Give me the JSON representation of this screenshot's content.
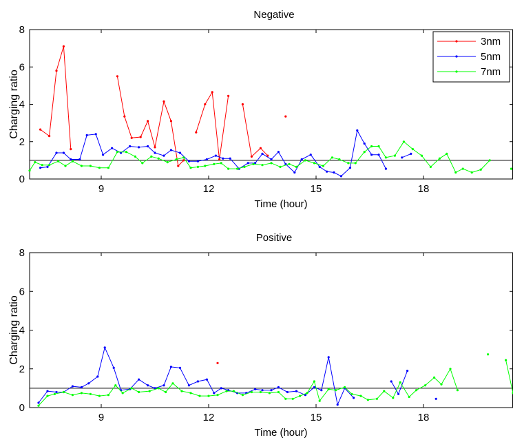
{
  "chart_data": [
    {
      "type": "line",
      "title": "Negative",
      "xlabel": "Time (hour)",
      "ylabel": "Charging ratio",
      "xlim": [
        7,
        20.5
      ],
      "ylim": [
        0,
        8
      ],
      "xticks": [
        9,
        12,
        15,
        18
      ],
      "xtick_labels": [
        "9",
        "12",
        "15",
        "18"
      ],
      "yticks": [
        0,
        2,
        4,
        6,
        8
      ],
      "ytick_labels": [
        "0",
        "2",
        "4",
        "6",
        "8"
      ],
      "reference_line": 1,
      "legend": {
        "position": "top-right",
        "entries": [
          "3nm",
          "5nm",
          "7nm"
        ]
      },
      "series": [
        {
          "name": "3nm",
          "color": "#ff0000",
          "points": [
            [
              7.3,
              2.65
            ],
            [
              7.55,
              2.3
            ],
            [
              7.75,
              5.8
            ],
            [
              7.95,
              7.1
            ],
            [
              8.15,
              1.6
            ],
            null,
            [
              9.45,
              5.5
            ],
            [
              9.65,
              3.35
            ],
            [
              9.85,
              2.2
            ],
            [
              10.1,
              2.25
            ],
            [
              10.3,
              3.1
            ],
            [
              10.5,
              1.7
            ],
            [
              10.75,
              4.15
            ],
            [
              10.95,
              3.1
            ],
            [
              11.15,
              0.7
            ],
            [
              11.3,
              1.0
            ],
            null,
            [
              11.65,
              2.5
            ],
            [
              11.9,
              4.0
            ],
            [
              12.1,
              4.65
            ],
            [
              12.3,
              1.05
            ],
            [
              12.55,
              4.45
            ],
            null,
            [
              12.95,
              4.0
            ],
            [
              13.2,
              1.2
            ],
            [
              13.45,
              1.65
            ],
            [
              13.65,
              1.25
            ],
            null,
            [
              14.15,
              3.35
            ]
          ]
        },
        {
          "name": "5nm",
          "color": "#0000ff",
          "points": [
            [
              7.3,
              0.6
            ],
            [
              7.5,
              0.65
            ],
            [
              7.75,
              1.4
            ],
            [
              7.95,
              1.4
            ],
            [
              8.15,
              1.05
            ],
            [
              8.4,
              1.05
            ],
            [
              8.6,
              2.35
            ],
            [
              8.85,
              2.4
            ],
            [
              9.05,
              1.3
            ],
            [
              9.3,
              1.65
            ],
            [
              9.55,
              1.4
            ],
            [
              9.8,
              1.75
            ],
            [
              10.05,
              1.7
            ],
            [
              10.3,
              1.75
            ],
            [
              10.5,
              1.4
            ],
            [
              10.75,
              1.25
            ],
            [
              10.95,
              1.55
            ],
            [
              11.2,
              1.4
            ],
            [
              11.45,
              0.95
            ],
            [
              11.7,
              0.95
            ],
            [
              11.95,
              1.05
            ],
            [
              12.2,
              1.25
            ],
            [
              12.4,
              1.1
            ],
            [
              12.6,
              1.1
            ],
            [
              12.85,
              0.55
            ],
            [
              13.1,
              0.85
            ],
            [
              13.3,
              0.85
            ],
            [
              13.5,
              1.35
            ],
            [
              13.75,
              1.05
            ],
            [
              13.95,
              1.45
            ],
            [
              14.15,
              0.8
            ],
            [
              14.4,
              0.35
            ],
            [
              14.6,
              1.05
            ],
            [
              14.85,
              1.3
            ],
            [
              15.1,
              0.65
            ],
            [
              15.3,
              0.4
            ],
            [
              15.5,
              0.35
            ],
            [
              15.7,
              0.15
            ],
            [
              15.95,
              0.6
            ],
            [
              16.15,
              2.6
            ],
            [
              16.35,
              1.9
            ],
            [
              16.55,
              1.3
            ],
            [
              16.75,
              1.3
            ],
            [
              16.95,
              0.55
            ],
            null,
            [
              17.4,
              1.15
            ],
            [
              17.65,
              1.35
            ]
          ]
        },
        {
          "name": "7nm",
          "color": "#00ff00",
          "points": [
            [
              7.0,
              0.45
            ],
            [
              7.15,
              0.9
            ],
            [
              7.35,
              0.75
            ],
            [
              7.55,
              0.75
            ],
            [
              7.8,
              0.95
            ],
            [
              8.0,
              0.7
            ],
            [
              8.2,
              0.95
            ],
            [
              8.45,
              0.7
            ],
            [
              8.7,
              0.7
            ],
            [
              8.95,
              0.6
            ],
            [
              9.2,
              0.6
            ],
            [
              9.45,
              1.45
            ],
            [
              9.7,
              1.45
            ],
            [
              9.95,
              1.2
            ],
            [
              10.15,
              0.85
            ],
            [
              10.4,
              1.2
            ],
            [
              10.6,
              1.1
            ],
            [
              10.85,
              0.9
            ],
            [
              11.1,
              1.05
            ],
            [
              11.3,
              1.15
            ],
            [
              11.5,
              0.6
            ],
            [
              11.7,
              0.65
            ],
            [
              11.9,
              0.7
            ],
            [
              12.15,
              0.8
            ],
            [
              12.35,
              0.85
            ],
            [
              12.55,
              0.55
            ],
            [
              12.8,
              0.55
            ],
            [
              13.0,
              0.65
            ],
            [
              13.25,
              0.8
            ],
            [
              13.5,
              0.75
            ],
            [
              13.75,
              0.85
            ],
            [
              14.0,
              0.65
            ],
            [
              14.25,
              0.8
            ],
            [
              14.45,
              0.65
            ],
            [
              14.7,
              1.0
            ],
            [
              14.95,
              0.85
            ],
            [
              15.2,
              0.7
            ],
            [
              15.45,
              1.15
            ],
            [
              15.65,
              1.05
            ],
            [
              15.9,
              0.85
            ],
            [
              16.1,
              0.85
            ],
            [
              16.35,
              1.45
            ],
            [
              16.55,
              1.75
            ],
            [
              16.75,
              1.75
            ],
            [
              16.95,
              1.15
            ],
            [
              17.2,
              1.25
            ],
            [
              17.45,
              2.0
            ],
            [
              17.7,
              1.6
            ],
            [
              17.95,
              1.25
            ],
            [
              18.2,
              0.65
            ],
            [
              18.45,
              1.1
            ],
            [
              18.65,
              1.35
            ],
            [
              18.9,
              0.35
            ],
            [
              19.1,
              0.55
            ],
            [
              19.35,
              0.35
            ],
            [
              19.6,
              0.5
            ],
            [
              19.85,
              1.0
            ],
            null,
            [
              20.45,
              0.55
            ]
          ]
        }
      ]
    },
    {
      "type": "line",
      "title": "Positive",
      "xlabel": "Time (hour)",
      "ylabel": "Charging ratio",
      "xlim": [
        7,
        20.5
      ],
      "ylim": [
        0,
        8
      ],
      "xticks": [
        9,
        12,
        15,
        18
      ],
      "xtick_labels": [
        "9",
        "12",
        "15",
        "18"
      ],
      "yticks": [
        0,
        2,
        4,
        6,
        8
      ],
      "ytick_labels": [
        "0",
        "2",
        "4",
        "6",
        "8"
      ],
      "reference_line": 1,
      "series": [
        {
          "name": "3nm",
          "color": "#ff0000",
          "points": [
            [
              12.25,
              2.3
            ]
          ]
        },
        {
          "name": "5nm",
          "color": "#0000ff",
          "points": [
            [
              7.25,
              0.25
            ],
            [
              7.5,
              0.85
            ],
            [
              7.75,
              0.8
            ],
            [
              7.95,
              0.8
            ],
            [
              8.2,
              1.1
            ],
            [
              8.45,
              1.05
            ],
            [
              8.65,
              1.25
            ],
            [
              8.9,
              1.6
            ],
            [
              9.1,
              3.1
            ],
            [
              9.35,
              2.05
            ],
            [
              9.55,
              0.9
            ],
            [
              9.8,
              0.95
            ],
            [
              10.05,
              1.45
            ],
            [
              10.3,
              1.15
            ],
            [
              10.5,
              1.0
            ],
            [
              10.75,
              1.15
            ],
            [
              10.95,
              2.1
            ],
            [
              11.2,
              2.05
            ],
            [
              11.45,
              1.15
            ],
            [
              11.7,
              1.35
            ],
            [
              11.95,
              1.45
            ],
            [
              12.15,
              0.75
            ],
            [
              12.35,
              1.0
            ],
            [
              12.55,
              0.9
            ],
            [
              12.8,
              0.75
            ],
            [
              13.05,
              0.75
            ],
            [
              13.3,
              0.95
            ],
            [
              13.5,
              0.9
            ],
            [
              13.75,
              0.9
            ],
            [
              13.95,
              1.05
            ],
            [
              14.2,
              0.8
            ],
            [
              14.45,
              0.85
            ],
            [
              14.7,
              0.65
            ],
            [
              14.95,
              1.05
            ],
            [
              15.15,
              0.9
            ],
            [
              15.35,
              2.6
            ],
            [
              15.6,
              0.15
            ],
            [
              15.8,
              1.0
            ],
            [
              16.05,
              0.5
            ],
            null,
            [
              17.1,
              1.35
            ],
            [
              17.3,
              0.7
            ],
            [
              17.55,
              1.9
            ],
            null,
            [
              18.35,
              0.45
            ]
          ]
        },
        {
          "name": "7nm",
          "color": "#00ff00",
          "points": [
            [
              7.25,
              0.1
            ],
            [
              7.5,
              0.6
            ],
            [
              7.7,
              0.7
            ],
            [
              7.95,
              0.8
            ],
            [
              8.2,
              0.65
            ],
            [
              8.45,
              0.75
            ],
            [
              8.7,
              0.7
            ],
            [
              8.95,
              0.6
            ],
            [
              9.2,
              0.65
            ],
            [
              9.4,
              1.15
            ],
            [
              9.6,
              0.75
            ],
            [
              9.85,
              1.0
            ],
            [
              10.05,
              0.8
            ],
            [
              10.35,
              0.85
            ],
            [
              10.6,
              1.0
            ],
            [
              10.8,
              0.8
            ],
            [
              11.0,
              1.25
            ],
            [
              11.25,
              0.85
            ],
            [
              11.5,
              0.75
            ],
            [
              11.75,
              0.6
            ],
            [
              12.0,
              0.6
            ],
            [
              12.25,
              0.65
            ],
            [
              12.5,
              0.85
            ],
            [
              12.7,
              0.85
            ],
            [
              12.95,
              0.65
            ],
            [
              13.2,
              0.8
            ],
            [
              13.45,
              0.8
            ],
            [
              13.7,
              0.75
            ],
            [
              13.95,
              0.8
            ],
            [
              14.15,
              0.45
            ],
            [
              14.35,
              0.45
            ],
            [
              14.55,
              0.6
            ],
            [
              14.75,
              0.75
            ],
            [
              14.95,
              1.35
            ],
            [
              15.1,
              0.35
            ],
            [
              15.35,
              0.95
            ],
            [
              15.55,
              0.9
            ],
            [
              15.8,
              1.05
            ],
            [
              16.0,
              0.7
            ],
            [
              16.25,
              0.6
            ],
            [
              16.45,
              0.4
            ],
            [
              16.7,
              0.45
            ],
            [
              16.9,
              0.85
            ],
            [
              17.15,
              0.5
            ],
            [
              17.35,
              1.3
            ],
            [
              17.6,
              0.55
            ],
            [
              17.8,
              0.9
            ],
            [
              18.05,
              1.15
            ],
            [
              18.3,
              1.55
            ],
            [
              18.5,
              1.2
            ],
            [
              18.75,
              2.0
            ],
            [
              18.95,
              0.9
            ],
            null,
            [
              19.8,
              2.75
            ],
            null,
            [
              20.3,
              2.45
            ],
            [
              20.5,
              0.75
            ]
          ]
        }
      ]
    }
  ]
}
